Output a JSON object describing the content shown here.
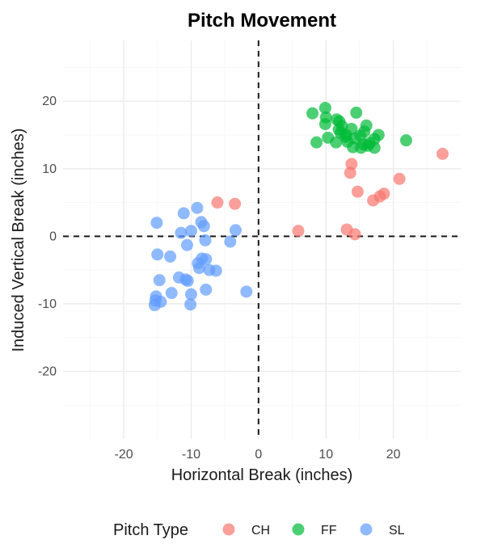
{
  "chart_data": {
    "type": "scatter",
    "title": "Pitch Movement",
    "xlabel": "Horizontal Break (inches)",
    "ylabel": "Induced Vertical Break (inches)",
    "xlim": [
      -29,
      30
    ],
    "ylim": [
      -30,
      29
    ],
    "x_ticks": [
      -20,
      -10,
      0,
      10,
      20
    ],
    "y_ticks": [
      -20,
      -10,
      0,
      10,
      20
    ],
    "grid": true,
    "reference_lines": {
      "x": 0,
      "y": 0,
      "style": "dashed"
    },
    "legend": {
      "title": "Pitch Type",
      "position": "bottom"
    },
    "series": [
      {
        "name": "CH",
        "color": "#F8766D",
        "points": [
          [
            27.3,
            12.2
          ],
          [
            13.8,
            10.7
          ],
          [
            13.6,
            9.4
          ],
          [
            20.9,
            8.5
          ],
          [
            14.7,
            6.6
          ],
          [
            18.6,
            6.3
          ],
          [
            18.0,
            5.9
          ],
          [
            17.0,
            5.3
          ],
          [
            -6.1,
            5.0
          ],
          [
            -3.5,
            4.8
          ],
          [
            5.9,
            0.8
          ],
          [
            13.1,
            1.0
          ],
          [
            14.3,
            0.3
          ]
        ]
      },
      {
        "name": "FF",
        "color": "#00BA38",
        "points": [
          [
            9.9,
            19.0
          ],
          [
            8.0,
            18.2
          ],
          [
            14.5,
            18.3
          ],
          [
            10.0,
            17.6
          ],
          [
            11.6,
            17.3
          ],
          [
            12.0,
            17.0
          ],
          [
            9.9,
            16.6
          ],
          [
            16.0,
            16.4
          ],
          [
            12.4,
            16.3
          ],
          [
            11.9,
            15.8
          ],
          [
            13.8,
            15.9
          ],
          [
            15.7,
            15.5
          ],
          [
            12.2,
            15.3
          ],
          [
            13.0,
            15.0
          ],
          [
            15.1,
            14.9
          ],
          [
            17.8,
            15.0
          ],
          [
            10.3,
            14.6
          ],
          [
            12.9,
            14.7
          ],
          [
            14.3,
            14.5
          ],
          [
            17.2,
            14.4
          ],
          [
            21.9,
            14.2
          ],
          [
            8.6,
            13.9
          ],
          [
            11.5,
            13.9
          ],
          [
            13.2,
            14.0
          ],
          [
            15.6,
            13.6
          ],
          [
            14.0,
            13.2
          ],
          [
            16.2,
            13.4
          ],
          [
            15.2,
            13.1
          ],
          [
            17.2,
            13.1
          ],
          [
            16.5,
            13.8
          ]
        ]
      },
      {
        "name": "SL",
        "color": "#619CFF",
        "points": [
          [
            -9.1,
            4.2
          ],
          [
            -11.1,
            3.4
          ],
          [
            -8.5,
            2.1
          ],
          [
            -15.1,
            2.0
          ],
          [
            -8.1,
            1.5
          ],
          [
            -3.4,
            0.9
          ],
          [
            -11.5,
            0.5
          ],
          [
            -10.0,
            0.8
          ],
          [
            -7.9,
            -0.6
          ],
          [
            -4.2,
            -0.8
          ],
          [
            -10.6,
            -1.3
          ],
          [
            -15.0,
            -2.7
          ],
          [
            -13.1,
            -3.0
          ],
          [
            -8.4,
            -3.3
          ],
          [
            -7.8,
            -3.4
          ],
          [
            -9.0,
            -4.0
          ],
          [
            -8.8,
            -4.7
          ],
          [
            -7.3,
            -5.0
          ],
          [
            -6.3,
            -5.1
          ],
          [
            -11.8,
            -6.1
          ],
          [
            -10.8,
            -6.4
          ],
          [
            -10.5,
            -6.6
          ],
          [
            -14.7,
            -6.5
          ],
          [
            -7.8,
            -7.9
          ],
          [
            -1.8,
            -8.2
          ],
          [
            -12.9,
            -8.4
          ],
          [
            -10.0,
            -8.6
          ],
          [
            -15.2,
            -8.9
          ],
          [
            -15.3,
            -9.5
          ],
          [
            -14.5,
            -9.7
          ],
          [
            -10.1,
            -10.1
          ],
          [
            -15.4,
            -10.2
          ]
        ]
      }
    ]
  }
}
